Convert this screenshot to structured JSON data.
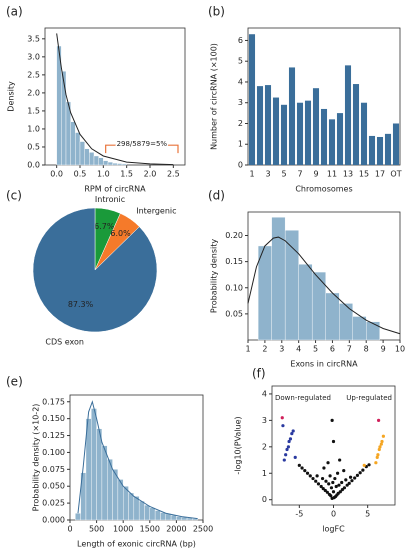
{
  "chart_data": [
    {
      "type": "histogram",
      "panel": "(a)",
      "ylabel": "Density",
      "xlabel": "RPM of circRNA",
      "annotation": "298/5879=5%",
      "color": "#8fb3cc",
      "line_color": "#222222",
      "accent": "#e8743b",
      "bins": [
        0,
        0.1,
        0.2,
        0.3,
        0.4,
        0.5,
        0.6,
        0.7,
        0.8,
        0.9,
        1.0,
        1.1,
        1.2,
        1.3,
        1.4,
        1.5
      ],
      "values": [
        3.3,
        2.6,
        1.75,
        1.2,
        0.9,
        0.65,
        0.45,
        0.35,
        0.25,
        0.2,
        0.12,
        0.08,
        0.05,
        0.04,
        0.03
      ],
      "curve": {
        "x": [
          0,
          0.1,
          0.2,
          0.3,
          0.5,
          0.75,
          1,
          1.5,
          2,
          2.5
        ],
        "y": [
          3.65,
          2.7,
          1.95,
          1.45,
          0.85,
          0.45,
          0.25,
          0.08,
          0.03,
          0.01
        ]
      },
      "xlim": [
        -0.25,
        2.75
      ],
      "ylim": [
        0,
        3.8
      ],
      "xticks": [
        {
          "value": 0,
          "label": "0.0"
        },
        0.5,
        {
          "value": 1,
          "label": "1.0"
        },
        1.5,
        {
          "value": 2,
          "label": "2.0"
        },
        2.5
      ],
      "yticks": [
        {
          "value": 0,
          "label": "0.0"
        },
        0.5,
        {
          "value": 1,
          "label": "1.0"
        },
        1.5,
        {
          "value": 2,
          "label": "2.0"
        },
        2.5,
        {
          "value": 3,
          "label": "3.0"
        },
        3.5
      ]
    },
    {
      "type": "bar",
      "panel": "(b)",
      "ylabel": "Number of circRNA (×100)",
      "xlabel": "Chromosomes",
      "color": "#3a6e9a",
      "categories": [
        "1",
        null,
        "3",
        null,
        "5",
        null,
        "7",
        null,
        "9",
        null,
        "11",
        null,
        "13",
        null,
        "15",
        null,
        "17",
        null,
        "OT"
      ],
      "values": [
        6.3,
        3.8,
        3.85,
        3.25,
        2.9,
        4.7,
        3.0,
        3.1,
        3.7,
        2.7,
        2.2,
        2.5,
        4.8,
        3.9,
        3.0,
        1.4,
        1.35,
        1.5,
        2.0
      ],
      "ylim": [
        0,
        6.6
      ],
      "yticks": [
        0,
        1,
        2,
        3,
        4,
        5,
        6
      ]
    },
    {
      "type": "pie",
      "panel": "(c)",
      "categories": [
        "Intronic",
        "Intergenic",
        "CDS exon"
      ],
      "values": [
        6.7,
        6.0,
        87.3
      ],
      "value_labels": [
        "6.7%",
        "6.0%",
        "87.3%"
      ],
      "colors": [
        "#1a9a3a",
        "#f57a2a",
        "#3a6e9a"
      ]
    },
    {
      "type": "histogram",
      "panel": "(d)",
      "ylabel": "Probability density",
      "xlabel": "Exons in circRNA",
      "color": "#8fb3cc",
      "line_color": "#222222",
      "bins": [
        1.6,
        2.4,
        3.2,
        4.0,
        4.8,
        5.6,
        6.4,
        7.2,
        8.0,
        8.8
      ],
      "values": [
        0.18,
        0.235,
        0.21,
        0.145,
        0.13,
        0.09,
        0.07,
        0.045,
        0.035
      ],
      "curve": {
        "x": [
          1,
          1.5,
          2,
          2.5,
          2.8,
          3.2,
          4,
          5,
          6,
          7,
          8,
          9,
          10
        ],
        "y": [
          0.07,
          0.14,
          0.18,
          0.195,
          0.197,
          0.19,
          0.165,
          0.125,
          0.09,
          0.06,
          0.038,
          0.022,
          0.012
        ]
      },
      "xlim": [
        1,
        10
      ],
      "ylim": [
        0,
        0.245
      ],
      "xticks": [
        1,
        2,
        3,
        4,
        5,
        6,
        7,
        8,
        9,
        10
      ],
      "yticks": [
        0.05,
        {
          "value": 0.1,
          "label": "0.10"
        },
        0.15,
        {
          "value": 0.2,
          "label": "0.20"
        }
      ]
    },
    {
      "type": "histogram",
      "panel": "(e)",
      "ylabel": "Probability density (×10-2)",
      "xlabel": "Length of exonic circRNA (bp)",
      "color": "#8fb3cc",
      "line_color": "#3a6e9a",
      "bins": [
        100,
        200,
        300,
        400,
        500,
        600,
        700,
        800,
        900,
        1000,
        1100,
        1200,
        1300,
        1400,
        1500,
        1600,
        1700,
        1800,
        1900,
        2000,
        2100,
        2200,
        2300,
        2400
      ],
      "values": [
        0.01,
        0.07,
        0.15,
        0.165,
        0.135,
        0.11,
        0.09,
        0.075,
        0.06,
        0.05,
        0.04,
        0.035,
        0.028,
        0.022,
        0.018,
        0.014,
        0.011,
        0.009,
        0.007,
        0.005,
        0.004,
        0.003,
        0.002
      ],
      "curve": {
        "x": [
          150,
          250,
          350,
          420,
          500,
          600,
          800,
          1000,
          1200,
          1500,
          1800,
          2100,
          2400
        ],
        "y": [
          0.01,
          0.08,
          0.16,
          0.175,
          0.15,
          0.115,
          0.075,
          0.05,
          0.035,
          0.02,
          0.01,
          0.005,
          0.002
        ]
      },
      "xlim": [
        0,
        2500
      ],
      "ylim": [
        0,
        0.185
      ],
      "xticks": [
        0,
        500,
        1000,
        1500,
        2000,
        2500
      ],
      "yticks": [
        {
          "value": 0,
          "label": "0.000"
        },
        0.025,
        {
          "value": 0.05,
          "label": "0.050"
        },
        0.075,
        {
          "value": 0.1,
          "label": "0.100"
        },
        0.125,
        {
          "value": 0.15,
          "label": "0.150"
        },
        0.175
      ]
    },
    {
      "type": "scatter",
      "panel": "(f)",
      "ylabel": "-log10(PValue)",
      "xlabel": "logFC",
      "annotations": [
        "Down-regulated",
        "Up-regulated"
      ],
      "series": [
        {
          "color": "#111111",
          "x": [
            -0.2,
            0.1,
            0.3,
            -0.4,
            0.5,
            -0.6,
            0.7,
            -0.9,
            1.0,
            -1.2,
            1.3,
            -1.5,
            1.6,
            -1.8,
            2.0,
            -2.2,
            2.3,
            -2.6,
            2.7,
            -3.0,
            3.1,
            -3.4,
            3.5,
            -3.8,
            3.9,
            -4.2,
            4.3,
            -4.6,
            4.8,
            -5.0,
            5.2,
            0.0,
            -0.3,
            0.4,
            -0.7,
            0.8,
            -1.1,
            1.2,
            -1.6,
            1.8,
            -2.4,
            2.5,
            -0.1,
            0.2,
            -0.5,
            0.6,
            1.5,
            -1.4,
            -0.8,
            0.9,
            0.0,
            -0.2
          ],
          "values": [
            0.05,
            0.08,
            0.12,
            0.15,
            0.18,
            0.2,
            0.24,
            0.28,
            0.3,
            0.35,
            0.38,
            0.42,
            0.45,
            0.5,
            0.55,
            0.6,
            0.62,
            0.7,
            0.72,
            0.8,
            0.82,
            0.9,
            0.92,
            1.0,
            1.02,
            1.1,
            1.12,
            1.2,
            1.25,
            1.3,
            1.32,
            0.3,
            0.45,
            0.5,
            0.6,
            0.55,
            0.7,
            0.65,
            0.8,
            0.75,
            0.9,
            0.85,
            0.65,
            0.8,
            0.9,
            1.0,
            1.1,
            1.2,
            1.4,
            1.5,
            2.2,
            3.0
          ]
        },
        {
          "color": "#2a3aa0",
          "x": [
            -7.2,
            -7.0,
            -6.8,
            -6.6,
            -6.5,
            -6.3,
            -6.1,
            -5.9,
            -5.6,
            -7.4
          ],
          "values": [
            1.5,
            1.7,
            1.9,
            2.0,
            2.2,
            2.3,
            2.5,
            2.6,
            1.6,
            2.8
          ]
        },
        {
          "color": "#f5a623",
          "x": [
            6.2,
            6.4,
            6.5,
            6.7,
            6.8,
            7.0,
            7.1,
            7.3,
            4.5
          ],
          "values": [
            1.4,
            1.6,
            1.7,
            1.9,
            2.0,
            2.1,
            2.2,
            2.4,
            1.3
          ]
        },
        {
          "color": "#d0205a",
          "x": [
            -7.5,
            6.6
          ],
          "values": [
            3.1,
            3.0
          ]
        }
      ],
      "xlim": [
        -9,
        9
      ],
      "ylim": [
        -0.2,
        4.3
      ],
      "xticks": [
        -5,
        0,
        5
      ],
      "yticks": [
        0,
        1,
        2,
        3,
        4
      ]
    }
  ]
}
